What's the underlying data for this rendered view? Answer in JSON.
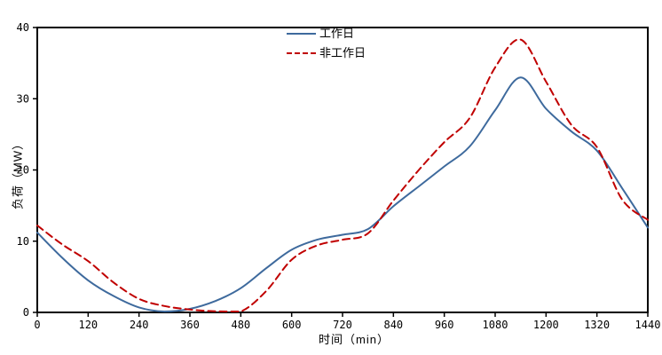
{
  "chart": {
    "legend": [
      {
        "label": "工作日",
        "color": "#3e6a9d",
        "style": "solid"
      },
      {
        "label": "非工作日",
        "color": "#c00000",
        "style": "dashed"
      }
    ]
  },
  "chart_data": {
    "type": "line",
    "title": "",
    "xlabel": "时间（min）",
    "ylabel": "负荷（MW）",
    "xlim": [
      0,
      1440
    ],
    "ylim": [
      0,
      40
    ],
    "xticks": [
      0,
      120,
      240,
      360,
      480,
      600,
      720,
      840,
      960,
      1080,
      1200,
      1320,
      1440
    ],
    "yticks": [
      0,
      10,
      20,
      30,
      40
    ],
    "grid": false,
    "legend_position": "top-center",
    "x": [
      0,
      60,
      120,
      180,
      240,
      300,
      360,
      420,
      480,
      540,
      600,
      660,
      720,
      780,
      840,
      900,
      960,
      1020,
      1080,
      1140,
      1200,
      1260,
      1320,
      1380,
      1440
    ],
    "series": [
      {
        "name": "工作日",
        "color": "#3e6a9d",
        "dash": "solid",
        "values": [
          11.2,
          7.6,
          4.5,
          2.3,
          0.7,
          0.1,
          0.5,
          1.6,
          3.4,
          6.2,
          8.8,
          10.2,
          10.9,
          11.7,
          14.9,
          17.7,
          20.5,
          23.3,
          28.4,
          33.0,
          28.6,
          25.4,
          22.7,
          17.4,
          11.9
        ]
      },
      {
        "name": "非工作日",
        "color": "#c00000",
        "dash": "dashed",
        "values": [
          12.2,
          9.5,
          7.2,
          4.2,
          1.9,
          0.9,
          0.4,
          0.15,
          0.05,
          3.0,
          7.4,
          9.4,
          10.2,
          11.1,
          15.7,
          20.0,
          23.9,
          27.3,
          34.4,
          38.3,
          32.4,
          26.3,
          23.2,
          15.8,
          13.0
        ]
      }
    ]
  }
}
